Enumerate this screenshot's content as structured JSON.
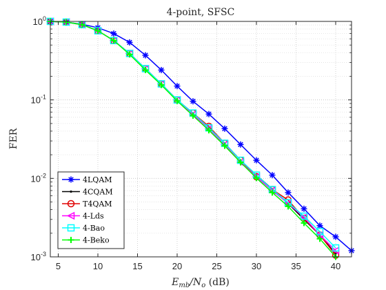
{
  "chart_data": {
    "type": "line",
    "title": "4-point, SFSC",
    "xlabel_main": "E",
    "xlabel_sub": "mb",
    "xlabel_mid": "/N",
    "xlabel_sub2": "o",
    "xlabel_tail": " (dB)",
    "ylabel": "FER",
    "xlim": [
      4,
      42
    ],
    "ylim": [
      0.001,
      1
    ],
    "yscale": "log",
    "grid": "major and minor, dotted",
    "legend_position": "bottom-left",
    "x_ticks": [
      5,
      10,
      15,
      20,
      25,
      30,
      35,
      40
    ],
    "y_ticks": [
      {
        "value": 1,
        "base": "10",
        "exp": "0"
      },
      {
        "value": 0.1,
        "base": "10",
        "exp": "-1"
      },
      {
        "value": 0.01,
        "base": "10",
        "exp": "-2"
      },
      {
        "value": 0.001,
        "base": "10",
        "exp": "-3"
      }
    ],
    "series": [
      {
        "name": "4LQAM",
        "color": "#0000ff",
        "marker": "star",
        "x": [
          4,
          6,
          8,
          10,
          12,
          14,
          16,
          18,
          20,
          22,
          24,
          26,
          28,
          30,
          32,
          34,
          36,
          38,
          40,
          42
        ],
        "y": [
          1,
          0.98,
          0.92,
          0.83,
          0.7,
          0.54,
          0.37,
          0.24,
          0.15,
          0.096,
          0.066,
          0.043,
          0.027,
          0.017,
          0.011,
          0.0066,
          0.0041,
          0.0025,
          0.0018,
          0.0012
        ]
      },
      {
        "name": "4CQAM",
        "color": "#000000",
        "marker": "dot",
        "x": [
          4,
          6,
          8,
          10,
          12,
          14,
          16,
          18,
          20,
          22,
          24,
          26,
          28,
          30,
          32,
          34,
          36,
          38,
          40
        ],
        "y": [
          1,
          0.98,
          0.91,
          0.76,
          0.57,
          0.39,
          0.25,
          0.16,
          0.1,
          0.067,
          0.044,
          0.028,
          0.017,
          0.011,
          0.0073,
          0.0048,
          0.003,
          0.0019,
          0.0011
        ]
      },
      {
        "name": "T4QAM",
        "color": "#e00000",
        "marker": "circle",
        "x": [
          4,
          6,
          8,
          10,
          12,
          14,
          16,
          18,
          20,
          22,
          24,
          26,
          28,
          30,
          32,
          34,
          36,
          38,
          40
        ],
        "y": [
          1,
          0.98,
          0.91,
          0.76,
          0.57,
          0.39,
          0.25,
          0.16,
          0.1,
          0.068,
          0.046,
          0.028,
          0.017,
          0.0105,
          0.0072,
          0.0053,
          0.0031,
          0.0019,
          0.00105
        ]
      },
      {
        "name": "4-Lds",
        "color": "#ff00ff",
        "marker": "triangle-left",
        "x": [
          4,
          6,
          8,
          10,
          12,
          14,
          16,
          18,
          20,
          22,
          24,
          26,
          28,
          30,
          32,
          34,
          36,
          38,
          40
        ],
        "y": [
          1,
          0.98,
          0.91,
          0.76,
          0.57,
          0.39,
          0.25,
          0.16,
          0.1,
          0.065,
          0.043,
          0.027,
          0.016,
          0.0105,
          0.007,
          0.0048,
          0.0032,
          0.0019,
          0.0012
        ]
      },
      {
        "name": "4-Bao",
        "color": "#00ffff",
        "marker": "square",
        "x": [
          4,
          6,
          8,
          10,
          12,
          14,
          16,
          18,
          20,
          22,
          24,
          26,
          28,
          30,
          32,
          34,
          36,
          38,
          40
        ],
        "y": [
          1,
          0.98,
          0.91,
          0.76,
          0.57,
          0.39,
          0.25,
          0.16,
          0.1,
          0.068,
          0.044,
          0.028,
          0.017,
          0.011,
          0.0072,
          0.0049,
          0.0033,
          0.0021,
          0.0013
        ]
      },
      {
        "name": "4-Beko",
        "color": "#00ff00",
        "marker": "plus",
        "x": [
          4,
          6,
          8,
          10,
          12,
          14,
          16,
          18,
          20,
          22,
          24,
          26,
          28,
          30,
          32,
          34,
          36,
          38,
          40
        ],
        "y": [
          1,
          0.98,
          0.91,
          0.76,
          0.57,
          0.38,
          0.24,
          0.155,
          0.097,
          0.063,
          0.041,
          0.026,
          0.016,
          0.0101,
          0.0066,
          0.0044,
          0.0027,
          0.0017,
          0.001
        ]
      }
    ]
  }
}
